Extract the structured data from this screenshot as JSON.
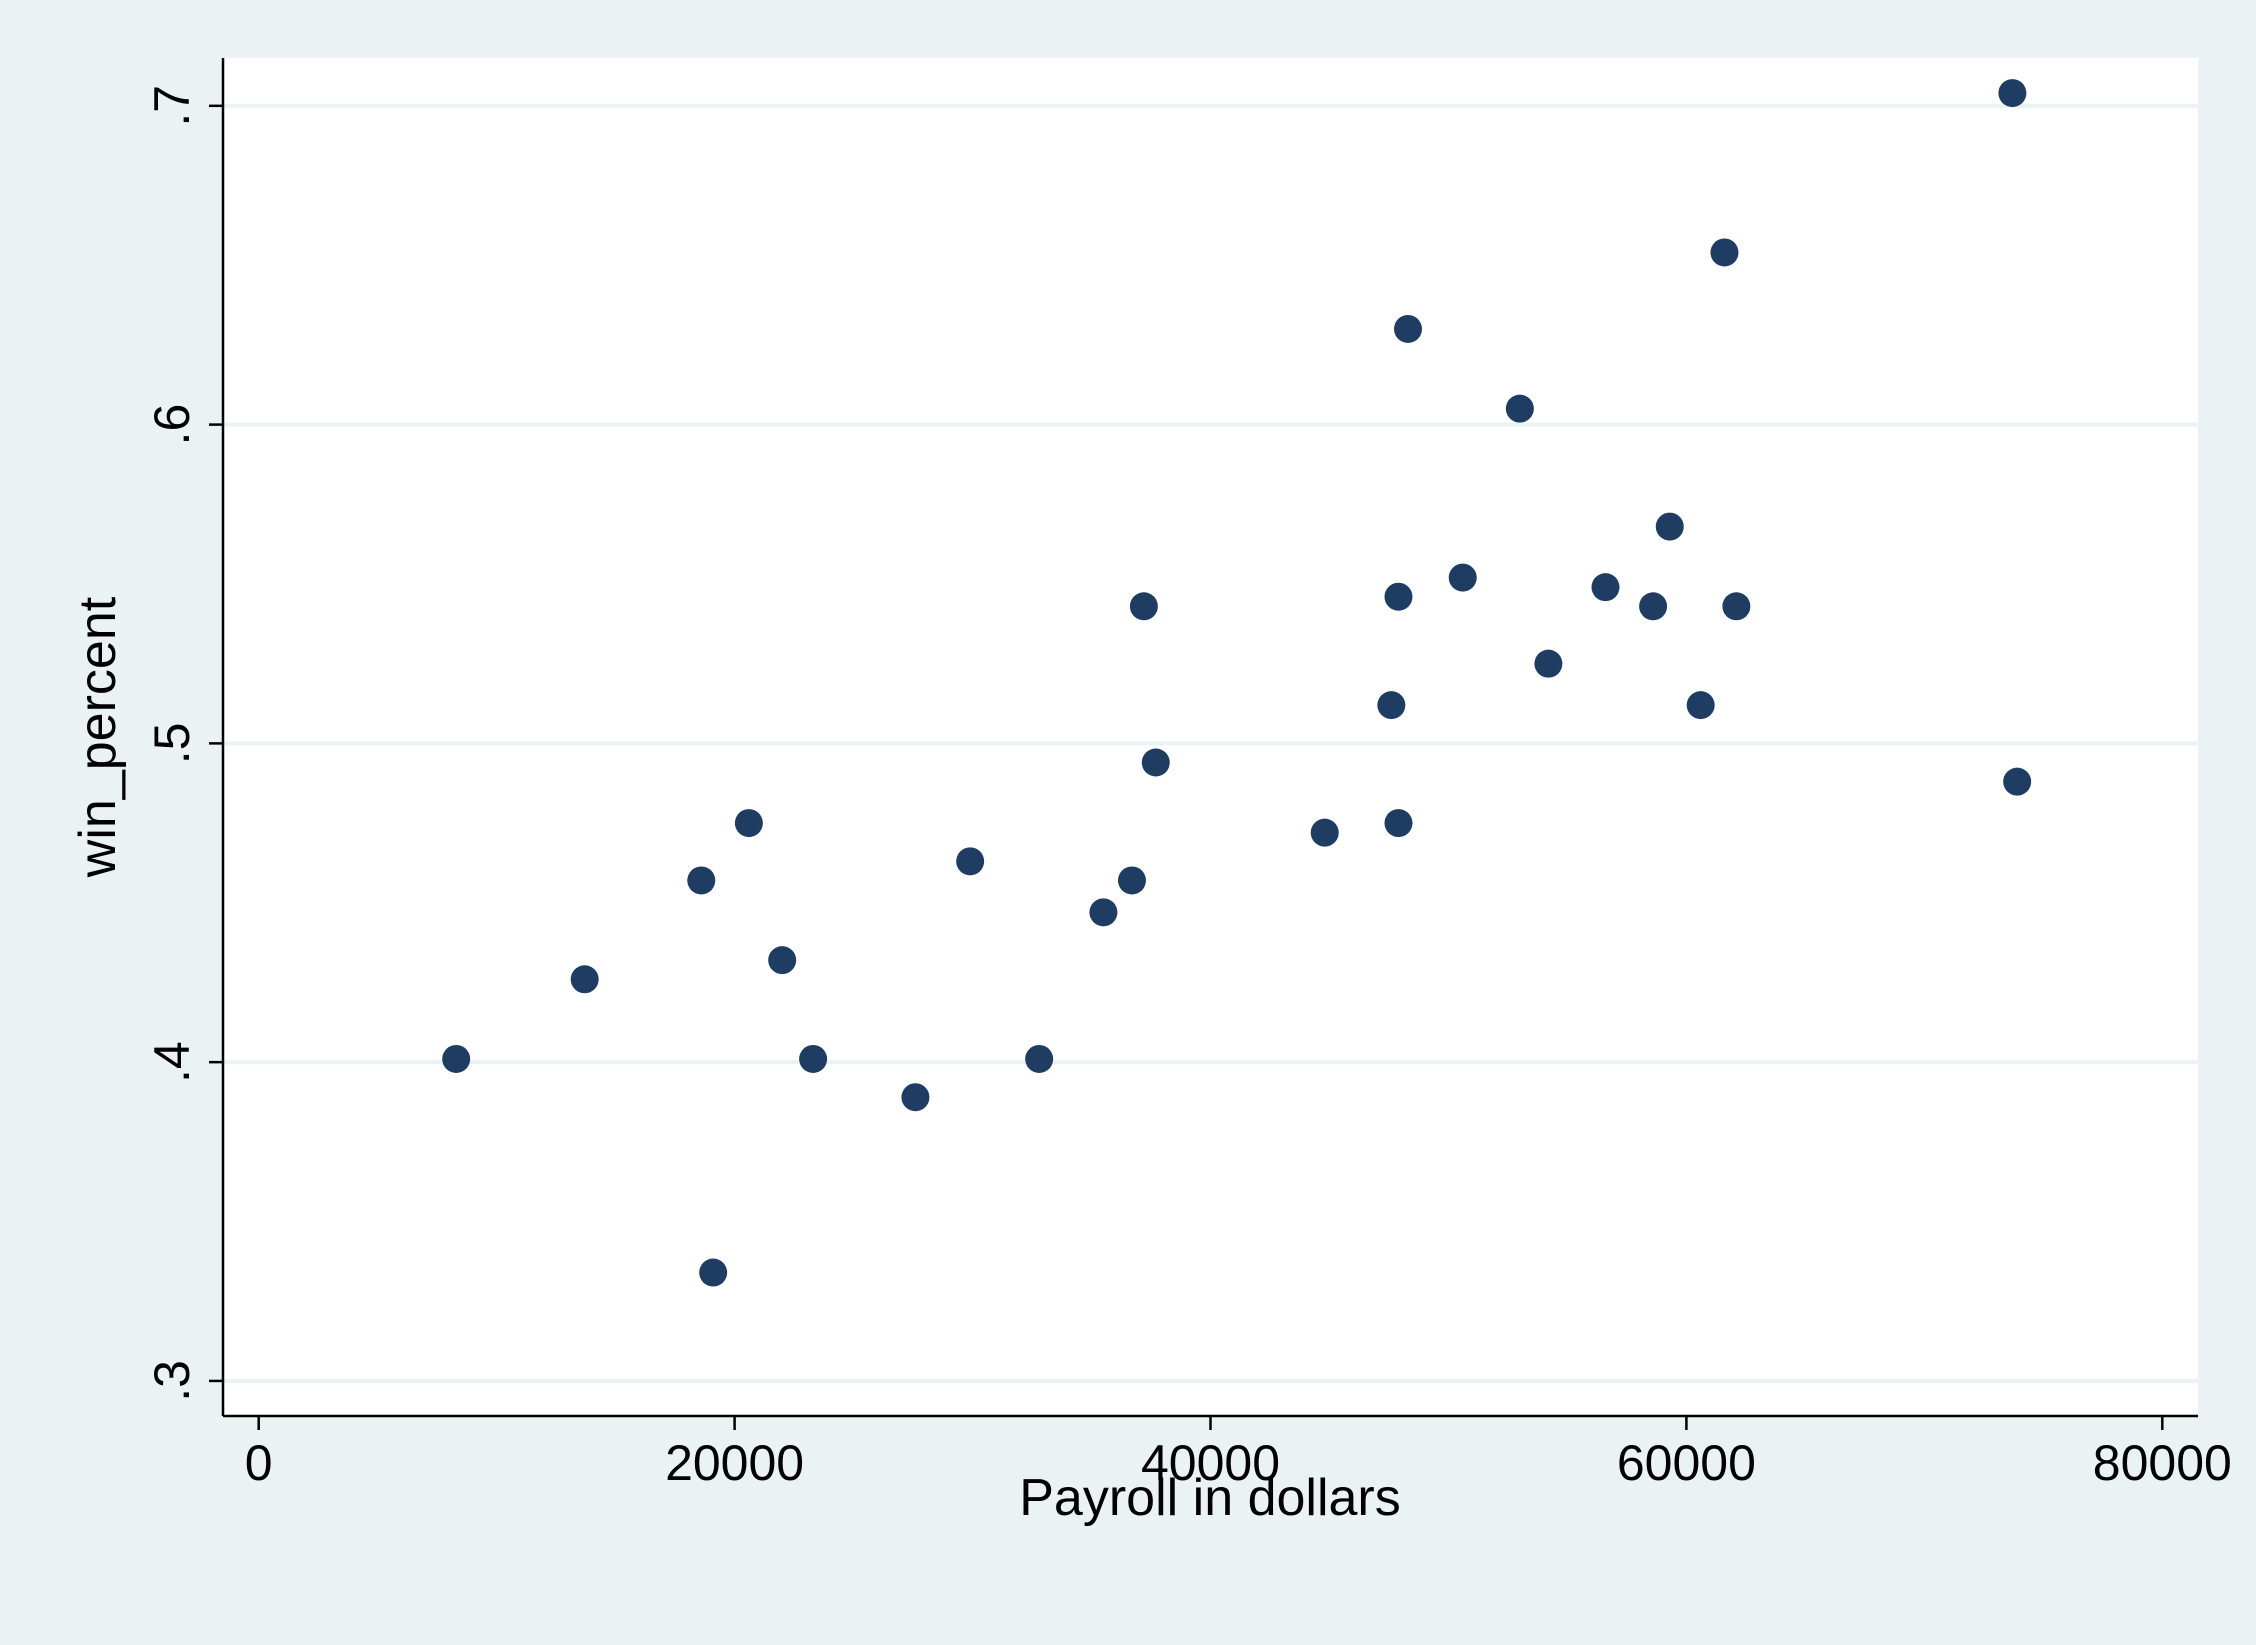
{
  "chart_data": {
    "type": "scatter",
    "title": "",
    "xlabel": "Payroll in dollars",
    "ylabel": "win_percent",
    "xlim": [
      -1500,
      81500
    ],
    "ylim": [
      0.289,
      0.715
    ],
    "x_ticks": [
      0,
      20000,
      40000,
      60000,
      80000
    ],
    "x_tick_labels": [
      "0",
      "20000",
      "40000",
      "60000",
      "80000"
    ],
    "y_ticks": [
      0.3,
      0.4,
      0.5,
      0.6,
      0.7
    ],
    "y_tick_labels": [
      ".3",
      ".4",
      ".5",
      ".6",
      ".7"
    ],
    "grid": "horizontal",
    "legend": "none",
    "colors": {
      "background": "#eaf2f3",
      "plot_area": "#ffffff",
      "gridline": "#eaf2f3",
      "marker": "#1f3d63"
    },
    "series": [
      {
        "points": [
          {
            "x": 8300,
            "y": 0.401
          },
          {
            "x": 13700,
            "y": 0.426
          },
          {
            "x": 18600,
            "y": 0.457
          },
          {
            "x": 19100,
            "y": 0.334
          },
          {
            "x": 20600,
            "y": 0.475
          },
          {
            "x": 22000,
            "y": 0.432
          },
          {
            "x": 23300,
            "y": 0.401
          },
          {
            "x": 27600,
            "y": 0.389
          },
          {
            "x": 29900,
            "y": 0.463
          },
          {
            "x": 32800,
            "y": 0.401
          },
          {
            "x": 35500,
            "y": 0.447
          },
          {
            "x": 36700,
            "y": 0.457
          },
          {
            "x": 37200,
            "y": 0.543
          },
          {
            "x": 37700,
            "y": 0.494
          },
          {
            "x": 44800,
            "y": 0.472
          },
          {
            "x": 47600,
            "y": 0.512
          },
          {
            "x": 47900,
            "y": 0.475
          },
          {
            "x": 47900,
            "y": 0.546
          },
          {
            "x": 48300,
            "y": 0.63
          },
          {
            "x": 50600,
            "y": 0.552
          },
          {
            "x": 53000,
            "y": 0.605
          },
          {
            "x": 54200,
            "y": 0.525
          },
          {
            "x": 56600,
            "y": 0.549
          },
          {
            "x": 58600,
            "y": 0.543
          },
          {
            "x": 59300,
            "y": 0.568
          },
          {
            "x": 60600,
            "y": 0.512
          },
          {
            "x": 61600,
            "y": 0.654
          },
          {
            "x": 62100,
            "y": 0.543
          },
          {
            "x": 73700,
            "y": 0.704
          },
          {
            "x": 73900,
            "y": 0.488
          }
        ]
      }
    ]
  }
}
